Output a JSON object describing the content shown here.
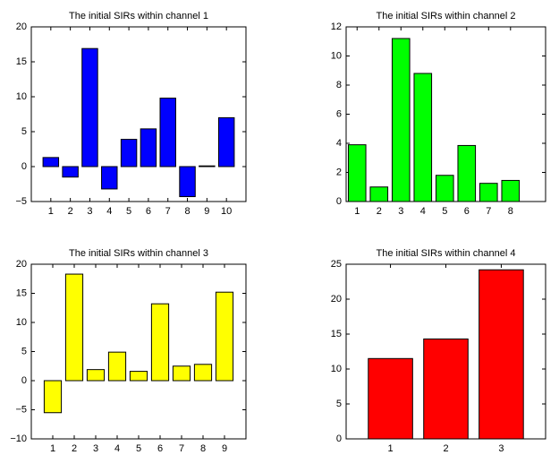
{
  "chart_data": [
    {
      "type": "bar",
      "title": "The initial SIRs within channel 1",
      "x": [
        1,
        2,
        3,
        4,
        5,
        6,
        7,
        8,
        9,
        10
      ],
      "values": [
        1.3,
        -1.5,
        16.9,
        -3.2,
        3.9,
        5.4,
        9.8,
        -4.3,
        0.1,
        7.0
      ],
      "color": "#0000ff",
      "xlim": [
        0,
        11
      ],
      "ylim": [
        -5,
        20
      ],
      "xticks": [
        1,
        2,
        3,
        4,
        5,
        6,
        7,
        8,
        9,
        10
      ],
      "yticks": [
        {
          "value": -5,
          "label": "−5"
        },
        0,
        5,
        10,
        15,
        20
      ]
    },
    {
      "type": "bar",
      "title": "The initial SIRs within channel 2",
      "x": [
        1,
        2,
        3,
        4,
        5,
        6,
        7,
        8
      ],
      "values": [
        3.9,
        1.0,
        11.2,
        8.8,
        1.8,
        3.85,
        1.25,
        1.45
      ],
      "color": "#00ff00",
      "xlim": [
        0.5,
        9.6
      ],
      "ylim": [
        0,
        12
      ],
      "xticks": [
        1,
        2,
        3,
        4,
        5,
        6,
        7,
        8
      ],
      "yticks": [
        0,
        2,
        4,
        6,
        8,
        10,
        12
      ]
    },
    {
      "type": "bar",
      "title": "The initial SIRs within channel 3",
      "x": [
        1,
        2,
        3,
        4,
        5,
        6,
        7,
        8,
        9
      ],
      "values": [
        -5.5,
        18.3,
        1.9,
        4.9,
        1.6,
        13.2,
        2.5,
        2.8,
        15.2
      ],
      "color": "#ffff00",
      "xlim": [
        0,
        10
      ],
      "ylim": [
        -10,
        20
      ],
      "xticks": [
        1,
        2,
        3,
        4,
        5,
        6,
        7,
        8,
        9
      ],
      "yticks": [
        {
          "value": -10,
          "label": "−10"
        },
        {
          "value": -5,
          "label": "−5"
        },
        0,
        5,
        10,
        15,
        20
      ]
    },
    {
      "type": "bar",
      "title": "The initial SIRs within channel 4",
      "x": [
        1,
        2,
        3
      ],
      "values": [
        11.5,
        14.3,
        24.2
      ],
      "color": "#ff0000",
      "xlim": [
        0.2,
        3.8
      ],
      "ylim": [
        0,
        25
      ],
      "xticks": [
        1,
        2,
        3
      ],
      "yticks": [
        0,
        5,
        10,
        15,
        20,
        25
      ]
    }
  ]
}
